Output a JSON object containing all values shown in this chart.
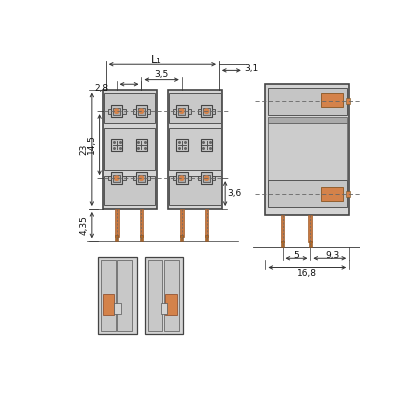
{
  "bg_color": "#ffffff",
  "gray_fill": "#d4d4d4",
  "med_gray": "#b8b8b8",
  "dark_gray": "#888888",
  "orange_fill": "#d4824a",
  "line_color": "#555555",
  "dim_color": "#333333",
  "dims": {
    "L1": "L₁",
    "d1": "2,8",
    "d2": "3,5",
    "d3": "3,1",
    "d4": "23",
    "d5": "14,5",
    "d6": "3,6",
    "d7": "4,35",
    "d8": "5",
    "d9": "9,3",
    "d10": "16,8"
  }
}
